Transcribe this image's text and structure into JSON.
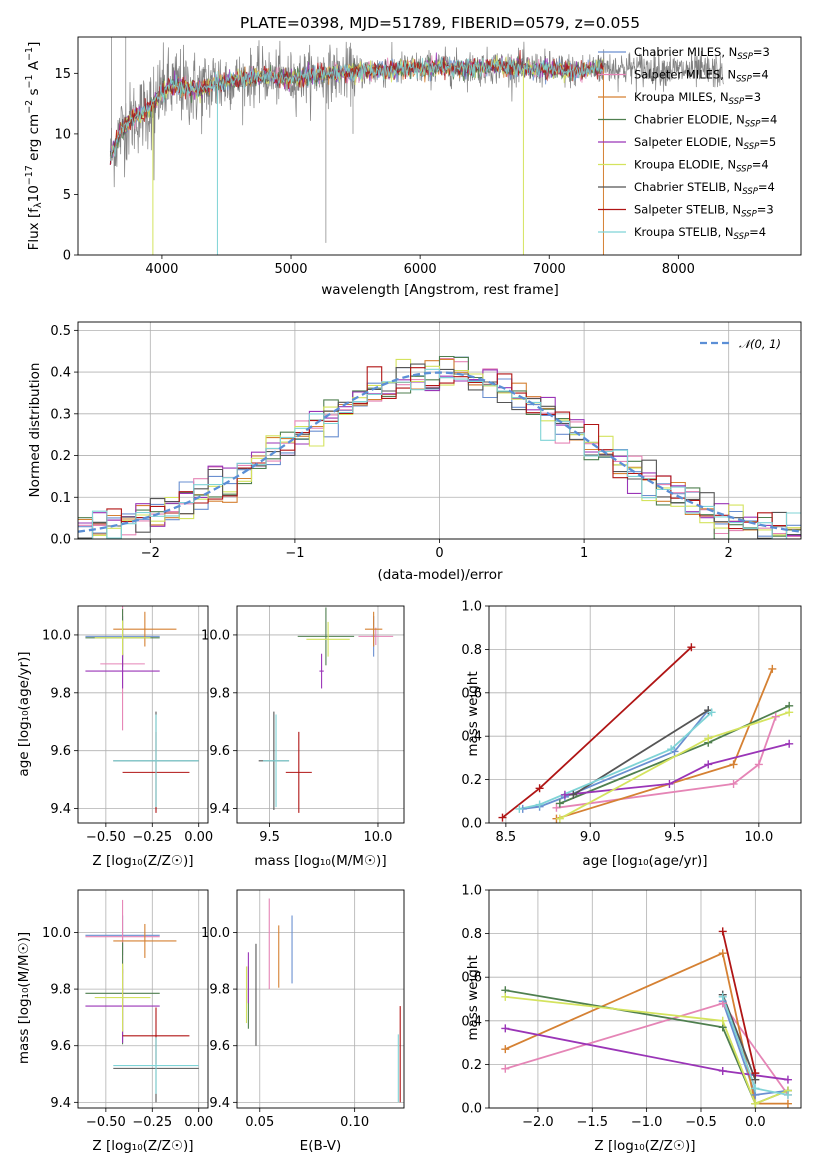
{
  "figure": {
    "title": "PLATE=0398, MJD=51789, FIBERID=0579, z=0.055",
    "colors": {
      "Chabrier MILES": "#6a8fd0",
      "Salpeter MILES": "#e585b6",
      "Kroupa MILES": "#d58133",
      "Chabrier ELODIE": "#4f7f4f",
      "Salpeter ELODIE": "#9a35b7",
      "Kroupa ELODIE": "#d4e35e",
      "Chabrier STELIB": "#555555",
      "Salpeter STELIB": "#b01515",
      "Kroupa STELIB": "#7fd3d6",
      "data": "#808080",
      "gaussian": "#5b8fd6"
    }
  },
  "panels": {
    "spectrum": {
      "xlabel": "wavelength [Angstrom, rest frame]",
      "ylabel_main": "Flux [f",
      "ylabel_sub": "λ",
      "ylabel_rest": "10",
      "ylabel_exp": "−17",
      "ylabel_tail": " erg cm",
      "ylabel_exp2": "−2",
      "ylabel_tail2": " s",
      "ylabel_exp3": "−1",
      "ylabel_tail3": " A",
      "ylabel_exp4": "−1",
      "ylabel_end": "]",
      "legend": [
        {
          "name": "Chabrier MILES",
          "nssp": "3"
        },
        {
          "name": "Salpeter MILES",
          "nssp": "4"
        },
        {
          "name": "Kroupa MILES",
          "nssp": "3"
        },
        {
          "name": "Chabrier ELODIE",
          "nssp": "4"
        },
        {
          "name": "Salpeter ELODIE",
          "nssp": "5"
        },
        {
          "name": "Kroupa ELODIE",
          "nssp": "4"
        },
        {
          "name": "Chabrier STELIB",
          "nssp": "4"
        },
        {
          "name": "Salpeter STELIB",
          "nssp": "3"
        },
        {
          "name": "Kroupa STELIB",
          "nssp": "4"
        }
      ],
      "legend_prefix": "N",
      "legend_sub": "SSP",
      "legend_eq": "="
    },
    "residuals": {
      "xlabel": "(data-model)/error",
      "ylabel": "Normed distribution",
      "legend": "𝒩(0, 1)"
    },
    "age_vs_Z": {
      "xlabel": "Z [log₁₀(Z/Z☉)]",
      "ylabel": "age  [log₁₀(age/yr)]"
    },
    "age_vs_mass": {
      "xlabel": "mass [log₁₀(M/M☉)]"
    },
    "weight_vs_age": {
      "xlabel": "age  [log₁₀(age/yr)]",
      "ylabel": "mass weight"
    },
    "mass_vs_Z": {
      "xlabel": "Z [log₁₀(Z/Z☉)]",
      "ylabel": "mass [log₁₀(M/M☉)]"
    },
    "mass_vs_ebv": {
      "xlabel": "E(B-V)"
    },
    "weight_vs_Z": {
      "xlabel": "Z [log₁₀(Z/Z☉)]",
      "ylabel": "mass weight"
    }
  },
  "chart_data": [
    {
      "id": "spectrum",
      "type": "line",
      "title": "PLATE=0398, MJD=51789, FIBERID=0579, z=0.055",
      "xlabel": "wavelength [Angstrom, rest frame]",
      "xlim": [
        3350,
        8950
      ],
      "ylim": [
        0,
        18
      ],
      "xticks": [
        4000,
        5000,
        6000,
        7000,
        8000
      ],
      "yticks": [
        0,
        5,
        10,
        15
      ],
      "grid": false,
      "legend_position": "right",
      "continuum": {
        "x": [
          3600,
          3650,
          3700,
          3800,
          3900,
          4000,
          4100,
          4200,
          4300,
          4400,
          4500,
          4600,
          4800,
          5000,
          5200,
          5400,
          5600,
          5800,
          6000,
          6200,
          6400,
          6600,
          6800,
          7000,
          7200,
          7400
        ],
        "y": [
          8.0,
          9.5,
          10.5,
          11.5,
          12.0,
          13.5,
          14.0,
          13.8,
          13.6,
          14.2,
          14.3,
          14.5,
          14.8,
          14.5,
          14.9,
          15.0,
          15.2,
          15.3,
          15.4,
          15.5,
          15.4,
          15.6,
          15.4,
          15.4,
          15.2,
          15.5
        ]
      },
      "data_end": 8350,
      "model_end": 7420
    },
    {
      "id": "residuals",
      "type": "line",
      "xlabel": "(data-model)/error",
      "ylabel": "Normed distribution",
      "xlim": [
        -2.5,
        2.5
      ],
      "ylim": [
        0,
        0.52
      ],
      "xticks": [
        -2,
        -1,
        0,
        1,
        2
      ],
      "yticks": [
        0.0,
        0.1,
        0.2,
        0.3,
        0.4,
        0.5
      ],
      "grid": true,
      "legend_position": "top-right",
      "series": [
        {
          "name": "𝒩(0, 1)",
          "style": "dashed"
        }
      ]
    },
    {
      "id": "age_vs_Z",
      "type": "scatter",
      "xlabel": "Z [log₁₀(Z/Z☉)]",
      "ylabel": "age  [log₁₀(age/yr)]",
      "xlim": [
        -0.65,
        0.05
      ],
      "ylim": [
        9.35,
        10.1
      ],
      "xticks": [
        -0.5,
        -0.25,
        0.0
      ],
      "yticks": [
        9.4,
        9.6,
        9.8,
        10.0
      ],
      "grid": true,
      "points": [
        {
          "c": "Chabrier MILES",
          "x": -0.41,
          "xe": 0.2,
          "y": 9.995,
          "ye": 0.07
        },
        {
          "c": "Salpeter MILES",
          "x": -0.41,
          "xe": 0.12,
          "y": 9.9,
          "ye": 0.23
        },
        {
          "c": "Kroupa MILES",
          "x": -0.29,
          "xe": 0.17,
          "y": 10.02,
          "ye": 0.06
        },
        {
          "c": "Chabrier ELODIE",
          "x": -0.41,
          "xe": 0.2,
          "y": 9.99,
          "ye": 0.1
        },
        {
          "c": "Salpeter ELODIE",
          "x": -0.41,
          "xe": 0.2,
          "y": 9.875,
          "ye": 0.06
        },
        {
          "c": "Kroupa ELODIE",
          "x": -0.41,
          "xe": 0.15,
          "y": 9.99,
          "ye": 0.06
        },
        {
          "c": "Chabrier STELIB",
          "x": -0.23,
          "xe": 0.23,
          "y": 9.565,
          "ye": 0.17
        },
        {
          "c": "Salpeter STELIB",
          "x": -0.23,
          "xe": 0.18,
          "y": 9.525,
          "ye": 0.14
        },
        {
          "c": "Kroupa STELIB",
          "x": -0.23,
          "xe": 0.23,
          "y": 9.565,
          "ye": 0.16
        }
      ]
    },
    {
      "id": "age_vs_mass",
      "type": "scatter",
      "xlabel": "mass [log₁₀(M/M☉)]",
      "xlim": [
        9.35,
        10.12
      ],
      "ylim": [
        9.35,
        10.1
      ],
      "xticks": [
        9.5,
        10.0
      ],
      "yticks": [
        9.4,
        9.6,
        9.8,
        10.0
      ],
      "grid": true,
      "points": [
        {
          "c": "Chabrier MILES",
          "x": 9.98,
          "xe": 0.01,
          "y": 9.995,
          "ye": 0.07
        },
        {
          "c": "Salpeter MILES",
          "x": 9.99,
          "xe": 0.08,
          "y": 9.995,
          "ye": 0.03
        },
        {
          "c": "Kroupa MILES",
          "x": 9.98,
          "xe": 0.04,
          "y": 10.02,
          "ye": 0.06
        },
        {
          "c": "Chabrier ELODIE",
          "x": 9.76,
          "xe": 0.13,
          "y": 9.995,
          "ye": 0.1
        },
        {
          "c": "Salpeter ELODIE",
          "x": 9.74,
          "xe": 0.01,
          "y": 9.875,
          "ye": 0.06
        },
        {
          "c": "Kroupa ELODIE",
          "x": 9.77,
          "xe": 0.1,
          "y": 9.985,
          "ye": 0.06
        },
        {
          "c": "Chabrier STELIB",
          "x": 9.52,
          "xe": 0.07,
          "y": 9.565,
          "ye": 0.17
        },
        {
          "c": "Salpeter STELIB",
          "x": 9.635,
          "xe": 0.06,
          "y": 9.525,
          "ye": 0.14
        },
        {
          "c": "Kroupa STELIB",
          "x": 9.53,
          "xe": 0.06,
          "y": 9.565,
          "ye": 0.16
        }
      ]
    },
    {
      "id": "weight_vs_age",
      "type": "line",
      "xlabel": "age  [log₁₀(age/yr)]",
      "ylabel": "mass weight",
      "xlim": [
        8.4,
        10.25
      ],
      "ylim": [
        0,
        1
      ],
      "xticks": [
        8.5,
        9.0,
        9.5,
        10.0
      ],
      "yticks": [
        0.0,
        0.2,
        0.4,
        0.6,
        0.8,
        1.0
      ],
      "grid": true,
      "series": [
        {
          "name": "Chabrier MILES",
          "x": [
            8.6,
            8.7,
            8.85,
            9.5,
            9.7
          ],
          "y": [
            0.065,
            0.075,
            0.12,
            0.33,
            0.52
          ]
        },
        {
          "name": "Salpeter MILES",
          "x": [
            8.8,
            9.85,
            10.0,
            10.1
          ],
          "y": [
            0.07,
            0.18,
            0.27,
            0.49
          ]
        },
        {
          "name": "Kroupa MILES",
          "x": [
            8.8,
            9.85,
            10.08
          ],
          "y": [
            0.02,
            0.27,
            0.71
          ]
        },
        {
          "name": "Chabrier ELODIE",
          "x": [
            8.82,
            9.7,
            10.18
          ],
          "y": [
            0.09,
            0.37,
            0.54
          ]
        },
        {
          "name": "Salpeter ELODIE",
          "x": [
            8.85,
            9.47,
            9.7,
            10.18
          ],
          "y": [
            0.13,
            0.18,
            0.27,
            0.365
          ]
        },
        {
          "name": "Kroupa ELODIE",
          "x": [
            8.82,
            9.7,
            10.18
          ],
          "y": [
            0.02,
            0.39,
            0.51
          ]
        },
        {
          "name": "Chabrier STELIB",
          "x": [
            8.9,
            9.7
          ],
          "y": [
            0.13,
            0.52
          ]
        },
        {
          "name": "Salpeter STELIB",
          "x": [
            8.48,
            8.7,
            9.6
          ],
          "y": [
            0.025,
            0.16,
            0.81
          ]
        },
        {
          "name": "Kroupa STELIB",
          "x": [
            8.58,
            8.7,
            9.48,
            9.72
          ],
          "y": [
            0.065,
            0.085,
            0.34,
            0.51
          ]
        }
      ]
    },
    {
      "id": "mass_vs_Z",
      "type": "scatter",
      "xlabel": "Z [log₁₀(Z/Z☉)]",
      "ylabel": "mass [log₁₀(M/M☉)]",
      "xlim": [
        -0.65,
        0.05
      ],
      "ylim": [
        9.38,
        10.15
      ],
      "xticks": [
        -0.5,
        -0.25,
        0.0
      ],
      "yticks": [
        9.4,
        9.6,
        9.8,
        10.0
      ],
      "grid": true,
      "points": [
        {
          "c": "Chabrier MILES",
          "x": -0.41,
          "xe": 0.2,
          "y": 9.99,
          "ye": 0.07
        },
        {
          "c": "Salpeter MILES",
          "x": -0.41,
          "xe": 0.2,
          "y": 9.985,
          "ye": 0.13
        },
        {
          "c": "Kroupa MILES",
          "x": -0.29,
          "xe": 0.17,
          "y": 9.97,
          "ye": 0.06
        },
        {
          "c": "Chabrier ELODIE",
          "x": -0.41,
          "xe": 0.2,
          "y": 9.785,
          "ye": 0.18
        },
        {
          "c": "Salpeter ELODIE",
          "x": -0.41,
          "xe": 0.2,
          "y": 9.74,
          "ye": 0.13
        },
        {
          "c": "Kroupa ELODIE",
          "x": -0.41,
          "xe": 0.15,
          "y": 9.77,
          "ye": 0.12
        },
        {
          "c": "Chabrier STELIB",
          "x": -0.23,
          "xe": 0.23,
          "y": 9.52,
          "ye": 0.12
        },
        {
          "c": "Salpeter STELIB",
          "x": -0.23,
          "xe": 0.18,
          "y": 9.635,
          "ye": 0.1
        },
        {
          "c": "Kroupa STELIB",
          "x": -0.23,
          "xe": 0.23,
          "y": 9.53,
          "ye": 0.1
        }
      ]
    },
    {
      "id": "mass_vs_ebv",
      "type": "scatter",
      "xlabel": "E(B-V)",
      "xlim": [
        0.038,
        0.126
      ],
      "ylim": [
        9.38,
        10.15
      ],
      "xticks": [
        0.05,
        0.1
      ],
      "yticks": [
        9.4,
        9.6,
        9.8,
        10.0
      ],
      "grid": true,
      "points": [
        {
          "c": "Chabrier MILES",
          "x": 0.067,
          "y": 9.94,
          "ye": 0.12
        },
        {
          "c": "Salpeter MILES",
          "x": 0.055,
          "y": 9.96,
          "ye": 0.16
        },
        {
          "c": "Kroupa MILES",
          "x": 0.06,
          "y": 9.915,
          "ye": 0.11
        },
        {
          "c": "Chabrier ELODIE",
          "x": 0.044,
          "y": 9.77,
          "ye": 0.11
        },
        {
          "c": "Salpeter ELODIE",
          "x": 0.044,
          "y": 9.84,
          "ye": 0.09
        },
        {
          "c": "Kroupa ELODIE",
          "x": 0.043,
          "y": 9.78,
          "ye": 0.1
        },
        {
          "c": "Chabrier STELIB",
          "x": 0.048,
          "y": 9.78,
          "ye": 0.18
        },
        {
          "c": "Salpeter STELIB",
          "x": 0.124,
          "y": 9.57,
          "ye": 0.17
        },
        {
          "c": "Kroupa STELIB",
          "x": 0.123,
          "y": 9.52,
          "ye": 0.12
        }
      ]
    },
    {
      "id": "weight_vs_Z",
      "type": "line",
      "xlabel": "Z [log₁₀(Z/Z☉)]",
      "ylabel": "mass weight",
      "xlim": [
        -2.45,
        0.42
      ],
      "ylim": [
        0,
        1
      ],
      "xticks": [
        -2.0,
        -1.5,
        -1.0,
        -0.5,
        0.0
      ],
      "yticks": [
        0.0,
        0.2,
        0.4,
        0.6,
        0.8,
        1.0
      ],
      "grid": true,
      "series": [
        {
          "name": "Chabrier MILES",
          "x": [
            -0.3,
            0.0,
            0.3
          ],
          "y": [
            0.49,
            0.06,
            0.08
          ]
        },
        {
          "name": "Salpeter MILES",
          "x": [
            -2.3,
            -0.3,
            0.3
          ],
          "y": [
            0.18,
            0.48,
            0.06
          ]
        },
        {
          "name": "Kroupa MILES",
          "x": [
            -2.3,
            -0.3,
            0.0,
            0.3
          ],
          "y": [
            0.27,
            0.71,
            0.02,
            0.02
          ]
        },
        {
          "name": "Chabrier ELODIE",
          "x": [
            -2.3,
            -0.3,
            0.0,
            0.3
          ],
          "y": [
            0.54,
            0.37,
            0.02,
            0.08
          ]
        },
        {
          "name": "Salpeter ELODIE",
          "x": [
            -2.3,
            -0.3,
            0.3
          ],
          "y": [
            0.365,
            0.17,
            0.13
          ]
        },
        {
          "name": "Kroupa ELODIE",
          "x": [
            -2.3,
            -0.3,
            0.0,
            0.3
          ],
          "y": [
            0.51,
            0.4,
            0.02,
            0.08
          ]
        },
        {
          "name": "Chabrier STELIB",
          "x": [
            -0.3,
            0.0
          ],
          "y": [
            0.52,
            0.13
          ]
        },
        {
          "name": "Salpeter STELIB",
          "x": [
            -0.3,
            0.0
          ],
          "y": [
            0.81,
            0.16
          ]
        },
        {
          "name": "Kroupa STELIB",
          "x": [
            -0.3,
            0.0,
            0.3
          ],
          "y": [
            0.51,
            0.09,
            0.06
          ]
        }
      ]
    }
  ]
}
